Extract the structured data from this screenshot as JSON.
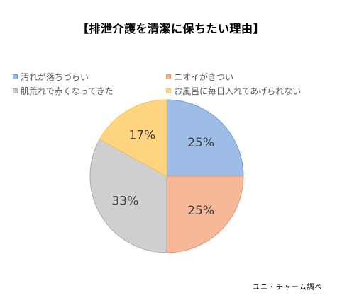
{
  "chart_data": {
    "type": "pie",
    "title": "【排泄介護を清潔に保ちたい理由】",
    "categories": [
      "汚れが落ちづらい",
      "ニオイがきつい",
      "肌荒れで赤くなってきた",
      "お風呂に毎日入れてあげられない"
    ],
    "values": [
      25,
      25,
      33,
      17
    ],
    "value_labels": [
      "25%",
      "25%",
      "33%",
      "17%"
    ],
    "colors": [
      "#9DBDE6",
      "#F7B899",
      "#CFCFCF",
      "#FFD580"
    ],
    "edge_colors": [
      "#6E9BD5",
      "#EE9467",
      "#ABABAB",
      "#F5C156"
    ],
    "legend_position": "top",
    "start": "12 o'clock, clockwise",
    "source_note": "ユニ・チャーム調べ"
  }
}
